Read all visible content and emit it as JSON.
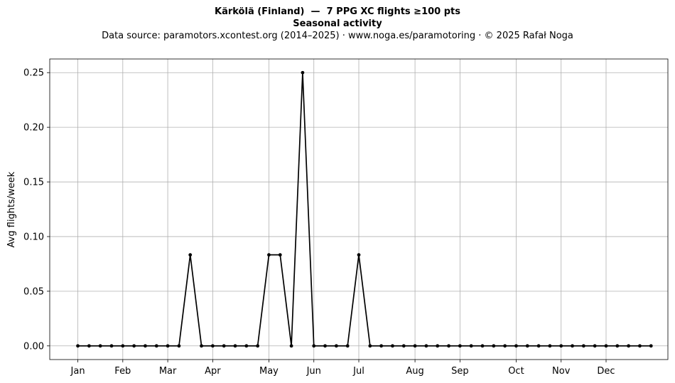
{
  "chart_data": {
    "type": "line",
    "title": "Kärkölä (Finland)  —  7 PPG XC flights ≥100 pts",
    "subtitle": "Seasonal activity",
    "source_note": "Data source: paramotors.xcontest.org (2014–2025)  ·  www.noga.es/paramotoring  ·  © 2025 Rafał Noga",
    "xlabel": "",
    "ylabel": "Avg flights/week",
    "ylim": [
      -0.0125,
      0.2625
    ],
    "xlim": [
      0.5,
      55.5
    ],
    "grid": true,
    "yticks": [
      0.0,
      0.05,
      0.1,
      0.15,
      0.2,
      0.25
    ],
    "ytick_labels": [
      "0.00",
      "0.05",
      "0.10",
      "0.15",
      "0.20",
      "0.25"
    ],
    "month_ticks": [
      {
        "label": "Jan",
        "week": 3
      },
      {
        "label": "Feb",
        "week": 7
      },
      {
        "label": "Mar",
        "week": 11
      },
      {
        "label": "Apr",
        "week": 15
      },
      {
        "label": "May",
        "week": 20
      },
      {
        "label": "Jun",
        "week": 24
      },
      {
        "label": "Jul",
        "week": 28
      },
      {
        "label": "Aug",
        "week": 33
      },
      {
        "label": "Sep",
        "week": 37
      },
      {
        "label": "Oct",
        "week": 42
      },
      {
        "label": "Nov",
        "week": 46
      },
      {
        "label": "Dec",
        "week": 50
      }
    ],
    "series": [
      {
        "color": "#000000",
        "x": [
          3,
          4,
          5,
          6,
          7,
          8,
          9,
          10,
          11,
          12,
          13,
          14,
          15,
          16,
          17,
          18,
          19,
          20,
          21,
          22,
          23,
          24,
          25,
          26,
          27,
          28,
          29,
          30,
          31,
          32,
          33,
          34,
          35,
          36,
          37,
          38,
          39,
          40,
          41,
          42,
          43,
          44,
          45,
          46,
          47,
          48,
          49,
          50,
          51,
          52,
          53,
          54
        ],
        "values": [
          0,
          0,
          0,
          0,
          0,
          0,
          0,
          0,
          0,
          0,
          0.0833,
          0,
          0,
          0,
          0,
          0,
          0,
          0.0833,
          0.0833,
          0,
          0.25,
          0,
          0,
          0,
          0,
          0.0833,
          0,
          0,
          0,
          0,
          0,
          0,
          0,
          0,
          0,
          0,
          0,
          0,
          0,
          0,
          0,
          0,
          0,
          0,
          0,
          0,
          0,
          0,
          0,
          0,
          0,
          0
        ]
      }
    ]
  }
}
